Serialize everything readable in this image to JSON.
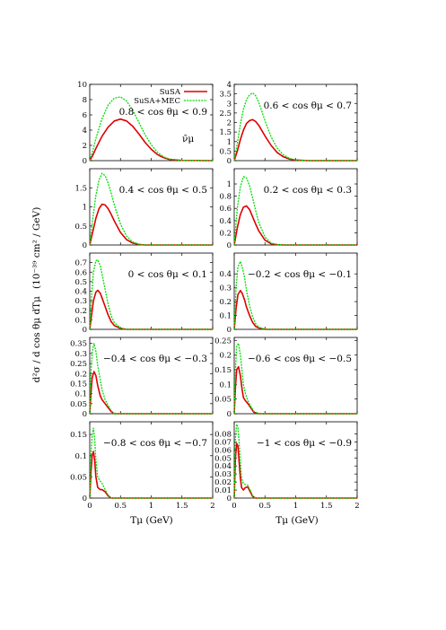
{
  "figure": {
    "ylabel_main": "d²σ / d cos θμ dTμ",
    "ylabel_unit": "(10⁻³⁹ cm² / GeV)",
    "neutrino_label": "ν̄μ",
    "xlabel": "Tμ (GeV)"
  },
  "colors": {
    "SuSA": "#dd0000",
    "SuSA+MEC": "#00dd00"
  },
  "chart_data": [
    {
      "type": "line",
      "panel_label": "0.8 < cos θμ < 0.9",
      "xlabel": "",
      "ylabel": "",
      "xlim": [
        0,
        2
      ],
      "ylim": [
        0,
        10
      ],
      "yticks": [
        0,
        2,
        4,
        6,
        8,
        10
      ],
      "xticks": [
        0,
        0.5,
        1,
        1.5,
        2
      ],
      "legend": {
        "position": "top-right",
        "entries": [
          "SuSA",
          "SuSA+MEC"
        ]
      },
      "series": [
        {
          "name": "SuSA",
          "x": [
            0,
            0.05,
            0.1,
            0.2,
            0.3,
            0.4,
            0.5,
            0.6,
            0.7,
            0.8,
            0.9,
            1.0,
            1.1,
            1.2,
            1.3,
            1.5,
            2.0
          ],
          "y": [
            0,
            0.7,
            1.6,
            3.2,
            4.4,
            5.2,
            5.45,
            5.2,
            4.5,
            3.5,
            2.4,
            1.5,
            0.8,
            0.4,
            0.15,
            0.03,
            0
          ]
        },
        {
          "name": "SuSA+MEC",
          "x": [
            0,
            0.05,
            0.1,
            0.2,
            0.3,
            0.4,
            0.5,
            0.6,
            0.7,
            0.8,
            0.9,
            1.0,
            1.1,
            1.2,
            1.3,
            1.5,
            2.0
          ],
          "y": [
            0,
            1.3,
            2.9,
            5.5,
            7.3,
            8.2,
            8.35,
            7.8,
            6.6,
            5.0,
            3.4,
            2.1,
            1.1,
            0.5,
            0.2,
            0.04,
            0
          ]
        }
      ]
    },
    {
      "type": "line",
      "panel_label": "0.6 < cos θμ < 0.7",
      "xlabel": "",
      "ylabel": "",
      "xlim": [
        0,
        2
      ],
      "ylim": [
        0,
        4
      ],
      "yticks": [
        0,
        0.5,
        1,
        1.5,
        2,
        2.5,
        3,
        3.5,
        4
      ],
      "xticks": [
        0,
        0.5,
        1,
        1.5,
        2
      ],
      "series": [
        {
          "name": "SuSA",
          "x": [
            0,
            0.05,
            0.1,
            0.15,
            0.2,
            0.25,
            0.3,
            0.35,
            0.4,
            0.5,
            0.6,
            0.7,
            0.8,
            0.9,
            1.0,
            1.2,
            2.0
          ],
          "y": [
            0,
            0.5,
            1.1,
            1.6,
            1.95,
            2.1,
            2.15,
            2.05,
            1.85,
            1.3,
            0.8,
            0.42,
            0.2,
            0.08,
            0.03,
            0,
            0
          ]
        },
        {
          "name": "SuSA+MEC",
          "x": [
            0,
            0.05,
            0.1,
            0.15,
            0.2,
            0.25,
            0.3,
            0.35,
            0.4,
            0.5,
            0.6,
            0.7,
            0.8,
            0.9,
            1.0,
            1.2,
            2.0
          ],
          "y": [
            0,
            0.9,
            1.9,
            2.7,
            3.2,
            3.45,
            3.55,
            3.4,
            3.05,
            2.1,
            1.25,
            0.65,
            0.3,
            0.12,
            0.04,
            0,
            0
          ]
        }
      ]
    },
    {
      "type": "line",
      "panel_label": "0.4 < cos θμ < 0.5",
      "xlabel": "",
      "ylabel": "",
      "xlim": [
        0,
        2
      ],
      "ylim": [
        0,
        2
      ],
      "yticks": [
        0,
        0.5,
        1,
        1.5
      ],
      "xticks": [
        0,
        0.5,
        1,
        1.5,
        2
      ],
      "series": [
        {
          "name": "SuSA",
          "x": [
            0,
            0.05,
            0.1,
            0.15,
            0.2,
            0.25,
            0.3,
            0.35,
            0.4,
            0.5,
            0.6,
            0.7,
            0.8,
            0.9,
            1.0,
            2.0
          ],
          "y": [
            0,
            0.35,
            0.7,
            0.95,
            1.07,
            1.05,
            0.95,
            0.8,
            0.63,
            0.33,
            0.14,
            0.05,
            0.015,
            0,
            0,
            0
          ]
        },
        {
          "name": "SuSA+MEC",
          "x": [
            0,
            0.05,
            0.1,
            0.15,
            0.2,
            0.25,
            0.3,
            0.35,
            0.4,
            0.5,
            0.6,
            0.7,
            0.8,
            0.9,
            1.0,
            2.0
          ],
          "y": [
            0,
            0.7,
            1.3,
            1.7,
            1.88,
            1.82,
            1.62,
            1.35,
            1.05,
            0.55,
            0.23,
            0.08,
            0.02,
            0,
            0,
            0
          ]
        }
      ]
    },
    {
      "type": "line",
      "panel_label": "0.2 < cos θμ < 0.3",
      "xlabel": "",
      "ylabel": "",
      "xlim": [
        0,
        2
      ],
      "ylim": [
        0,
        1.25
      ],
      "yticks": [
        0,
        0.2,
        0.4,
        0.6,
        0.8,
        1
      ],
      "xticks": [
        0,
        0.5,
        1,
        1.5,
        2
      ],
      "series": [
        {
          "name": "SuSA",
          "x": [
            0,
            0.05,
            0.1,
            0.15,
            0.2,
            0.25,
            0.3,
            0.35,
            0.4,
            0.5,
            0.6,
            0.7,
            0.8,
            2.0
          ],
          "y": [
            0,
            0.28,
            0.5,
            0.62,
            0.64,
            0.58,
            0.46,
            0.34,
            0.23,
            0.08,
            0.02,
            0.005,
            0,
            0
          ]
        },
        {
          "name": "SuSA+MEC",
          "x": [
            0,
            0.05,
            0.1,
            0.15,
            0.2,
            0.25,
            0.3,
            0.35,
            0.4,
            0.5,
            0.6,
            0.7,
            0.8,
            2.0
          ],
          "y": [
            0,
            0.6,
            0.95,
            1.12,
            1.1,
            0.97,
            0.77,
            0.56,
            0.37,
            0.13,
            0.03,
            0.008,
            0,
            0
          ]
        }
      ]
    },
    {
      "type": "line",
      "panel_label": "0 < cos θμ < 0.1",
      "xlabel": "",
      "ylabel": "",
      "xlim": [
        0,
        2
      ],
      "ylim": [
        0,
        0.8
      ],
      "yticks": [
        0,
        0.1,
        0.2,
        0.3,
        0.4,
        0.5,
        0.6,
        0.7
      ],
      "xticks": [
        0,
        0.5,
        1,
        1.5,
        2
      ],
      "series": [
        {
          "name": "SuSA",
          "x": [
            0,
            0.03,
            0.06,
            0.1,
            0.13,
            0.17,
            0.2,
            0.25,
            0.3,
            0.35,
            0.4,
            0.5,
            0.6,
            2.0
          ],
          "y": [
            0,
            0.15,
            0.3,
            0.39,
            0.41,
            0.38,
            0.33,
            0.24,
            0.15,
            0.08,
            0.04,
            0.01,
            0,
            0
          ]
        },
        {
          "name": "SuSA+MEC",
          "x": [
            0,
            0.03,
            0.06,
            0.1,
            0.13,
            0.17,
            0.2,
            0.25,
            0.3,
            0.35,
            0.4,
            0.5,
            0.6,
            2.0
          ],
          "y": [
            0,
            0.35,
            0.6,
            0.72,
            0.73,
            0.67,
            0.58,
            0.42,
            0.26,
            0.14,
            0.07,
            0.015,
            0,
            0
          ]
        }
      ]
    },
    {
      "type": "line",
      "panel_label": "−0.2 < cos θμ < −0.1",
      "xlabel": "",
      "ylabel": "",
      "xlim": [
        0,
        2
      ],
      "ylim": [
        0,
        0.55
      ],
      "yticks": [
        0,
        0.1,
        0.2,
        0.3,
        0.4
      ],
      "xticks": [
        0,
        0.5,
        1,
        1.5,
        2
      ],
      "series": [
        {
          "name": "SuSA",
          "x": [
            0,
            0.03,
            0.06,
            0.1,
            0.13,
            0.17,
            0.2,
            0.25,
            0.3,
            0.35,
            0.4,
            0.5,
            2.0
          ],
          "y": [
            0,
            0.15,
            0.25,
            0.28,
            0.26,
            0.21,
            0.16,
            0.1,
            0.05,
            0.02,
            0.01,
            0,
            0
          ]
        },
        {
          "name": "SuSA+MEC",
          "x": [
            0,
            0.03,
            0.06,
            0.1,
            0.13,
            0.17,
            0.2,
            0.25,
            0.3,
            0.35,
            0.4,
            0.5,
            2.0
          ],
          "y": [
            0,
            0.3,
            0.45,
            0.49,
            0.45,
            0.37,
            0.28,
            0.17,
            0.09,
            0.04,
            0.015,
            0,
            0
          ]
        }
      ]
    },
    {
      "type": "line",
      "panel_label": "−0.4 < cos θμ < −0.3",
      "xlabel": "",
      "ylabel": "",
      "xlim": [
        0,
        2
      ],
      "ylim": [
        0,
        0.38
      ],
      "yticks": [
        0,
        0.05,
        0.1,
        0.15,
        0.2,
        0.25,
        0.3,
        0.35
      ],
      "xticks": [
        0,
        0.5,
        1,
        1.5,
        2
      ],
      "series": [
        {
          "name": "SuSA",
          "x": [
            0,
            0.02,
            0.04,
            0.07,
            0.1,
            0.13,
            0.17,
            0.2,
            0.25,
            0.3,
            0.35,
            0.4,
            2.0
          ],
          "y": [
            0,
            0.1,
            0.18,
            0.21,
            0.19,
            0.14,
            0.09,
            0.07,
            0.05,
            0.03,
            0.01,
            0,
            0
          ]
        },
        {
          "name": "SuSA+MEC",
          "x": [
            0,
            0.02,
            0.04,
            0.07,
            0.1,
            0.13,
            0.17,
            0.2,
            0.25,
            0.3,
            0.35,
            0.4,
            2.0
          ],
          "y": [
            0,
            0.2,
            0.31,
            0.35,
            0.31,
            0.24,
            0.17,
            0.12,
            0.07,
            0.04,
            0.015,
            0,
            0
          ]
        }
      ]
    },
    {
      "type": "line",
      "panel_label": "−0.6 < cos θμ < −0.5",
      "xlabel": "",
      "ylabel": "",
      "xlim": [
        0,
        2
      ],
      "ylim": [
        0,
        0.26
      ],
      "yticks": [
        0,
        0.05,
        0.1,
        0.15,
        0.2,
        0.25
      ],
      "xticks": [
        0,
        0.5,
        1,
        1.5,
        2
      ],
      "series": [
        {
          "name": "SuSA",
          "x": [
            0,
            0.02,
            0.04,
            0.07,
            0.1,
            0.13,
            0.15,
            0.18,
            0.22,
            0.27,
            0.32,
            0.4,
            2.0
          ],
          "y": [
            0,
            0.09,
            0.15,
            0.16,
            0.13,
            0.08,
            0.055,
            0.045,
            0.035,
            0.02,
            0.005,
            0,
            0
          ]
        },
        {
          "name": "SuSA+MEC",
          "x": [
            0,
            0.02,
            0.04,
            0.07,
            0.1,
            0.13,
            0.15,
            0.18,
            0.22,
            0.27,
            0.32,
            0.4,
            2.0
          ],
          "y": [
            0,
            0.15,
            0.23,
            0.24,
            0.2,
            0.14,
            0.1,
            0.07,
            0.045,
            0.025,
            0.008,
            0,
            0
          ]
        }
      ]
    },
    {
      "type": "line",
      "panel_label": "−0.8 < cos θμ < −0.7",
      "xlabel": "",
      "ylabel": "",
      "xlim": [
        0,
        2
      ],
      "ylim": [
        0,
        0.18
      ],
      "yticks": [
        0,
        0.05,
        0.1,
        0.15
      ],
      "xticks": [
        0,
        0.5,
        1,
        1.5,
        2
      ],
      "series": [
        {
          "name": "SuSA",
          "x": [
            0,
            0.02,
            0.04,
            0.06,
            0.08,
            0.1,
            0.13,
            0.17,
            0.2,
            0.25,
            0.3,
            0.35,
            2.0
          ],
          "y": [
            0,
            0.06,
            0.1,
            0.11,
            0.09,
            0.05,
            0.025,
            0.02,
            0.02,
            0.015,
            0.005,
            0,
            0
          ]
        },
        {
          "name": "SuSA+MEC",
          "x": [
            0,
            0.02,
            0.04,
            0.06,
            0.08,
            0.1,
            0.13,
            0.17,
            0.2,
            0.25,
            0.3,
            0.35,
            2.0
          ],
          "y": [
            0,
            0.1,
            0.15,
            0.165,
            0.14,
            0.09,
            0.05,
            0.04,
            0.035,
            0.02,
            0.007,
            0,
            0
          ]
        }
      ]
    },
    {
      "type": "line",
      "panel_label": "−1 < cos θμ < −0.9",
      "xlabel": "",
      "ylabel": "",
      "xlim": [
        0,
        2
      ],
      "ylim": [
        0,
        0.095
      ],
      "yticks": [
        0,
        0.01,
        0.02,
        0.03,
        0.04,
        0.05,
        0.06,
        0.07,
        0.08
      ],
      "xticks": [
        0,
        0.5,
        1,
        1.5,
        2
      ],
      "series": [
        {
          "name": "SuSA",
          "x": [
            0,
            0.02,
            0.04,
            0.06,
            0.08,
            0.1,
            0.12,
            0.15,
            0.18,
            0.22,
            0.26,
            0.3,
            0.35,
            2.0
          ],
          "y": [
            0,
            0.05,
            0.068,
            0.065,
            0.045,
            0.025,
            0.013,
            0.01,
            0.013,
            0.014,
            0.008,
            0.002,
            0,
            0
          ]
        },
        {
          "name": "SuSA+MEC",
          "x": [
            0,
            0.02,
            0.04,
            0.06,
            0.08,
            0.1,
            0.12,
            0.15,
            0.18,
            0.22,
            0.26,
            0.3,
            0.35,
            2.0
          ],
          "y": [
            0,
            0.075,
            0.092,
            0.088,
            0.07,
            0.045,
            0.025,
            0.018,
            0.017,
            0.016,
            0.01,
            0.003,
            0,
            0
          ]
        }
      ]
    }
  ]
}
